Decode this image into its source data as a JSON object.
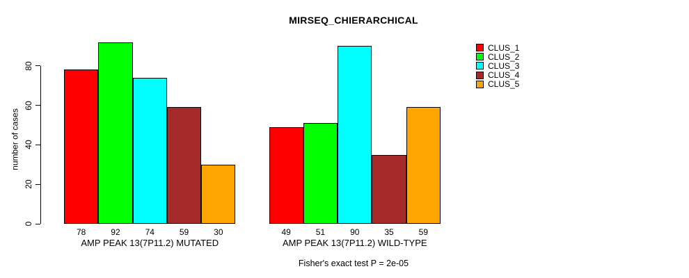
{
  "title": "MIRSEQ_CHIERARCHICAL",
  "annotation": "Fisher's exact test P = 2e-05",
  "y_axis": {
    "label": "number of cases",
    "ticks": [
      0,
      20,
      40,
      60,
      80
    ]
  },
  "legend": {
    "entries": [
      {
        "label": "CLUS_1",
        "color": "#FF0000"
      },
      {
        "label": "CLUS_2",
        "color": "#00FF00"
      },
      {
        "label": "CLUS_3",
        "color": "#00FFFF"
      },
      {
        "label": "CLUS_4",
        "color": "#A52A2A"
      },
      {
        "label": "CLUS_5",
        "color": "#FFA500"
      }
    ]
  },
  "chart_data": {
    "type": "bar",
    "title": "MIRSEQ_CHIERARCHICAL",
    "xlabel": "",
    "ylabel": "number of cases",
    "ylim": [
      0,
      92
    ],
    "grid": false,
    "legend_position": "right-outside",
    "bar_value_labels": true,
    "annotation": "Fisher's exact test P = 2e-05",
    "categories": [
      "AMP PEAK 13(7P11.2) MUTATED",
      "AMP PEAK 13(7P11.2) WILD-TYPE"
    ],
    "series": [
      {
        "name": "CLUS_1",
        "color": "#FF0000",
        "values": [
          78,
          49
        ]
      },
      {
        "name": "CLUS_2",
        "color": "#00FF00",
        "values": [
          92,
          51
        ]
      },
      {
        "name": "CLUS_3",
        "color": "#00FFFF",
        "values": [
          74,
          90
        ]
      },
      {
        "name": "CLUS_4",
        "color": "#A52A2A",
        "values": [
          59,
          35
        ]
      },
      {
        "name": "CLUS_5",
        "color": "#FFA500",
        "values": [
          30,
          59
        ]
      }
    ]
  }
}
